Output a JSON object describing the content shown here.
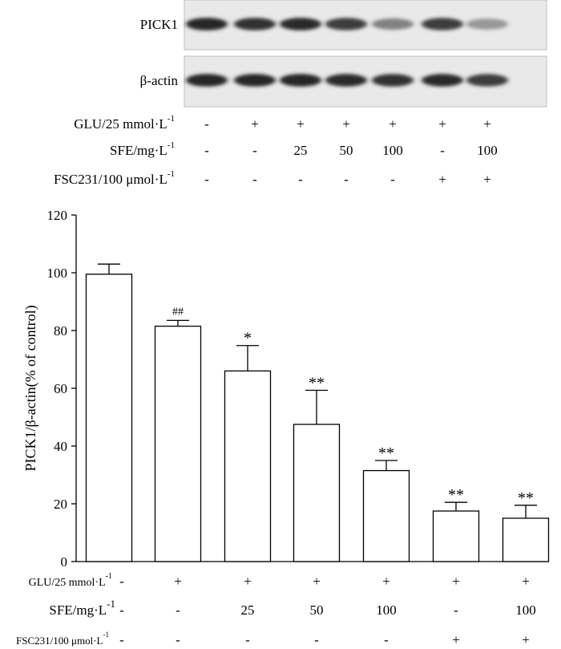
{
  "blot": {
    "rows": [
      {
        "label": "PICK1",
        "intensities": [
          0.95,
          0.9,
          0.92,
          0.85,
          0.55,
          0.85,
          0.45
        ]
      },
      {
        "label": "β-actin",
        "intensities": [
          0.95,
          0.95,
          0.95,
          0.92,
          0.9,
          0.92,
          0.85
        ]
      }
    ],
    "conditions": [
      {
        "label": "GLU/25 mmol·L",
        "sup": "-1",
        "values": [
          "-",
          "+",
          "+",
          "+",
          "+",
          "+",
          "+"
        ]
      },
      {
        "label": "SFE/mg·L",
        "sup": "-1",
        "values": [
          "-",
          "-",
          "25",
          "50",
          "100",
          "-",
          "100"
        ]
      },
      {
        "label": "FSC231/100 μmol·L",
        "sup": "-1",
        "values": [
          "-",
          "-",
          "-",
          "-",
          "-",
          "+",
          "+"
        ]
      }
    ]
  },
  "chart_data": {
    "type": "bar",
    "ylabel": "PICK1/β-actin(% of control)",
    "ylim": [
      0,
      120
    ],
    "yticks": [
      "0",
      "20",
      "40",
      "60",
      "80",
      "100",
      "120"
    ],
    "groups": 7,
    "values": [
      99.5,
      81.5,
      66,
      47.5,
      31.5,
      17.5,
      15
    ],
    "errors": [
      3.5,
      2,
      8.8,
      11.8,
      3.5,
      3,
      4.5
    ],
    "annotations": [
      "",
      "##",
      "*",
      "**",
      "**",
      "**",
      "**"
    ],
    "bar_color": "#ffffff",
    "conditions": [
      {
        "label": "GLU/25 mmol·L",
        "sup": "-1",
        "values": [
          "-",
          "+",
          "+",
          "+",
          "+",
          "+",
          "+"
        ]
      },
      {
        "label": "SFE/mg·L",
        "sup": "-1",
        "values": [
          "-",
          "-",
          "25",
          "50",
          "100",
          "-",
          "100"
        ]
      },
      {
        "label": "FSC231/100 μmol·L",
        "sup": "-1",
        "values": [
          "-",
          "-",
          "-",
          "-",
          "-",
          "+",
          "+"
        ]
      }
    ]
  }
}
